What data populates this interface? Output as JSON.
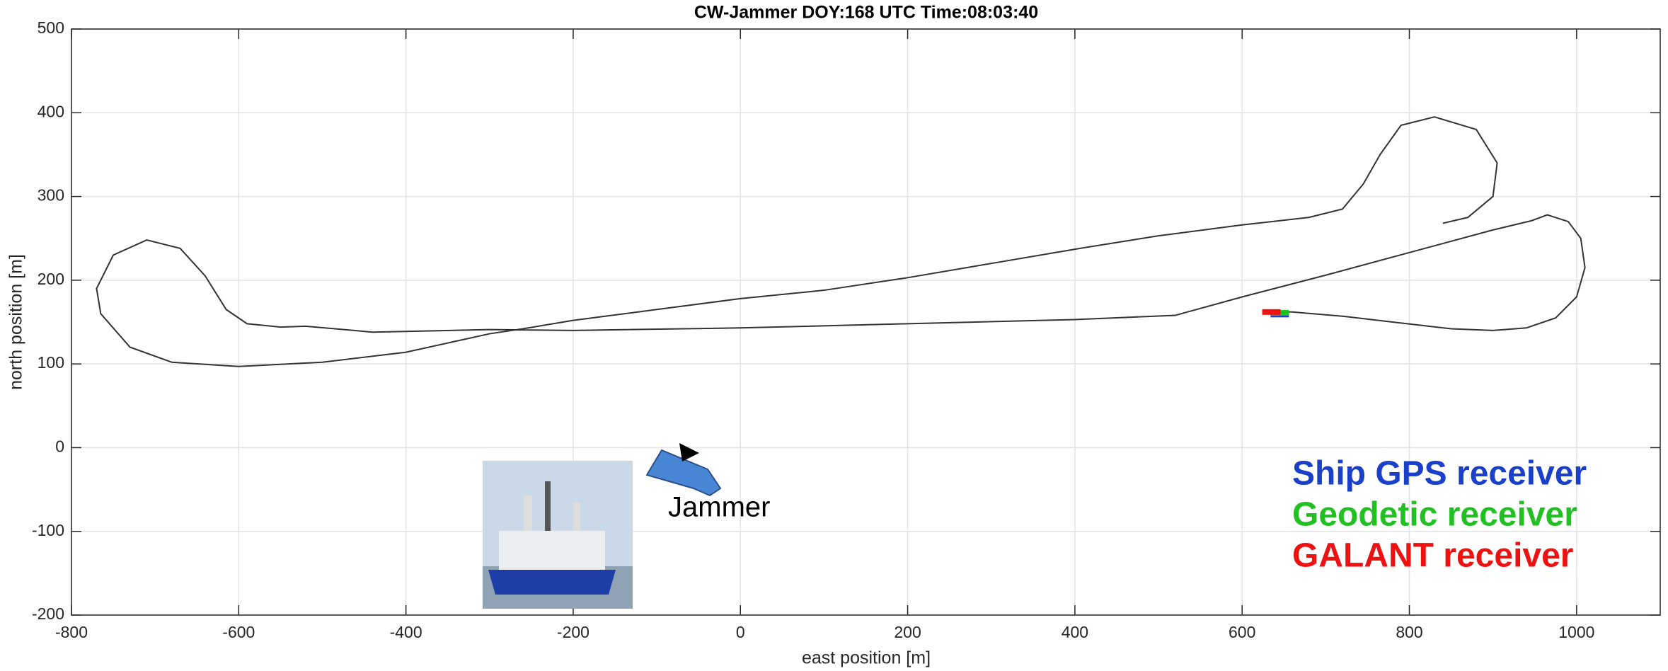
{
  "chart_data": {
    "type": "line",
    "title": "CW-Jammer  DOY:168  UTC Time:08:03:40",
    "xlabel": "east position [m]",
    "ylabel": "north position [m]",
    "annotation": "Jammer",
    "xlim": [
      -800,
      1100
    ],
    "ylim": [
      -200,
      500
    ],
    "xticks": [
      -800,
      -600,
      -400,
      -200,
      0,
      200,
      400,
      600,
      800,
      1000
    ],
    "yticks": [
      -200,
      -100,
      0,
      100,
      200,
      300,
      400,
      500
    ],
    "grid": true,
    "series": [
      {
        "color": "#333333",
        "x": [
          840,
          870,
          900,
          905,
          880,
          830,
          790,
          765,
          745,
          720,
          680,
          600,
          500,
          400,
          300,
          200,
          100,
          0,
          -100,
          -200,
          -260,
          -300,
          -400,
          -500,
          -600,
          -680,
          -730,
          -765,
          -770,
          -750,
          -710,
          -670,
          -640,
          -615,
          -590,
          -550,
          -520,
          -440,
          -300,
          -200,
          0,
          200,
          400,
          520,
          600,
          700,
          800,
          900,
          946,
          965,
          990,
          1005,
          1010,
          1000,
          975,
          940,
          900,
          850,
          780,
          720,
          660,
          640
        ],
        "values": [
          268,
          275,
          300,
          340,
          380,
          395,
          385,
          350,
          315,
          285,
          275,
          266,
          253,
          237,
          220,
          203,
          188,
          178,
          165,
          152,
          142,
          136,
          114,
          102,
          97,
          102,
          120,
          160,
          190,
          230,
          248,
          238,
          205,
          165,
          148,
          144,
          145,
          138,
          141,
          140,
          143,
          148,
          153,
          158,
          180,
          206,
          233,
          260,
          271,
          278,
          270,
          250,
          215,
          180,
          155,
          143,
          140,
          142,
          150,
          157,
          162,
          162
        ]
      },
      {
        "name": "Ship GPS receiver",
        "color": "#1a3fc8",
        "x": [
          645
        ],
        "values": [
          159
        ]
      },
      {
        "name": "Geodetic receiver",
        "color": "#22c022",
        "x": [
          645
        ],
        "values": [
          161
        ]
      },
      {
        "name": "GALANT receiver",
        "color": "#ee1111",
        "x": [
          635
        ],
        "values": [
          162
        ]
      }
    ]
  }
}
